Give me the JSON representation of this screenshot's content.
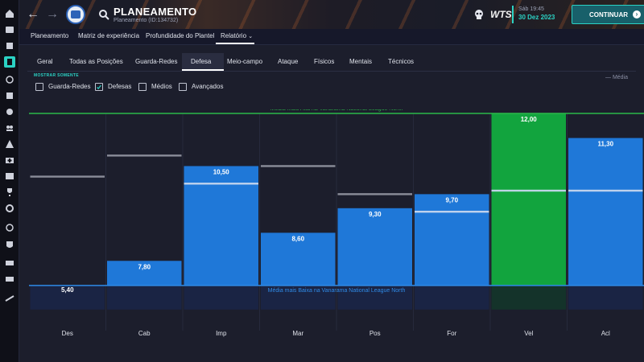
{
  "header": {
    "title": "PLANEAMENTO",
    "subtitle": "Planeamento (ID:134732)",
    "time": "Sáb 19:45",
    "date": "30 Dez 2023",
    "continue_label": "CONTINUAR",
    "brand": "WTS"
  },
  "menu": {
    "items": [
      "Planeamento",
      "Matriz de experiência",
      "Profundidade do Plantel",
      "Relatório"
    ]
  },
  "tabs": {
    "items": [
      "Geral",
      "Todas as Posições",
      "Guarda-Redes",
      "Defesa",
      "Meio-campo",
      "Ataque",
      "Físicos",
      "Mentais",
      "Técnicos"
    ],
    "active": "Defesa"
  },
  "filters": {
    "label": "MOSTRAR SOMENTE",
    "options": [
      {
        "label": "Guarda-Redes",
        "checked": false
      },
      {
        "label": "Defesas",
        "checked": true
      },
      {
        "label": "Médios",
        "checked": false
      },
      {
        "label": "Avançados",
        "checked": false
      }
    ],
    "legend": "— Média"
  },
  "colors": {
    "bar_blue": "#1f78d8",
    "bar_green": "#12a43e",
    "high_line": "#2bb84a",
    "low_line": "#2f8be8",
    "accent": "#2bd2c4"
  },
  "chart_data": {
    "type": "bar",
    "categories": [
      "Des",
      "Cab",
      "Imp",
      "Mar",
      "Pos",
      "For",
      "Vel",
      "Acl"
    ],
    "values": [
      5.4,
      7.8,
      10.5,
      8.6,
      9.3,
      9.7,
      12.0,
      11.3
    ],
    "value_labels": [
      "5,40",
      "7,80",
      "10,50",
      "8,60",
      "9,30",
      "9,70",
      "12,00",
      "11,30"
    ],
    "averages": [
      10.2,
      10.8,
      10.0,
      10.5,
      9.7,
      9.2,
      9.8,
      9.8
    ],
    "highlight_index": 6,
    "ref_high": {
      "value": 12.0,
      "label": "Média mais Alta na Vanarama National League North"
    },
    "ref_low": {
      "value": 7.1,
      "label": "Média mais Baixa na Vanarama National League North"
    },
    "ylim": [
      6.5,
      12.0
    ]
  }
}
